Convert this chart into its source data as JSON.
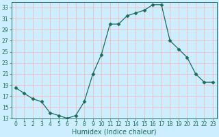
{
  "x": [
    0,
    1,
    2,
    3,
    4,
    5,
    6,
    7,
    8,
    9,
    10,
    11,
    12,
    13,
    14,
    15,
    16,
    17,
    18,
    19,
    20,
    21,
    22,
    23
  ],
  "y": [
    18.5,
    17.5,
    16.5,
    16.0,
    14.0,
    13.5,
    13.0,
    13.5,
    16.0,
    21.0,
    24.5,
    30.0,
    30.0,
    31.5,
    32.0,
    32.5,
    33.5,
    33.5,
    27.0,
    25.5,
    24.0,
    21.0,
    19.5,
    19.5
  ],
  "line_color": "#1a6b5a",
  "marker": "D",
  "marker_size": 2.5,
  "bg_color": "#cceeff",
  "grid_color": "#ffb0b0",
  "xlabel": "Humidex (Indice chaleur)",
  "xlim": [
    -0.5,
    23.5
  ],
  "ylim": [
    13,
    34
  ],
  "yticks": [
    13,
    15,
    17,
    19,
    21,
    23,
    25,
    27,
    29,
    31,
    33
  ],
  "xticks": [
    0,
    1,
    2,
    3,
    4,
    5,
    6,
    7,
    8,
    9,
    10,
    11,
    12,
    13,
    14,
    15,
    16,
    17,
    18,
    19,
    20,
    21,
    22,
    23
  ],
  "tick_fontsize": 5.5,
  "xlabel_fontsize": 7
}
